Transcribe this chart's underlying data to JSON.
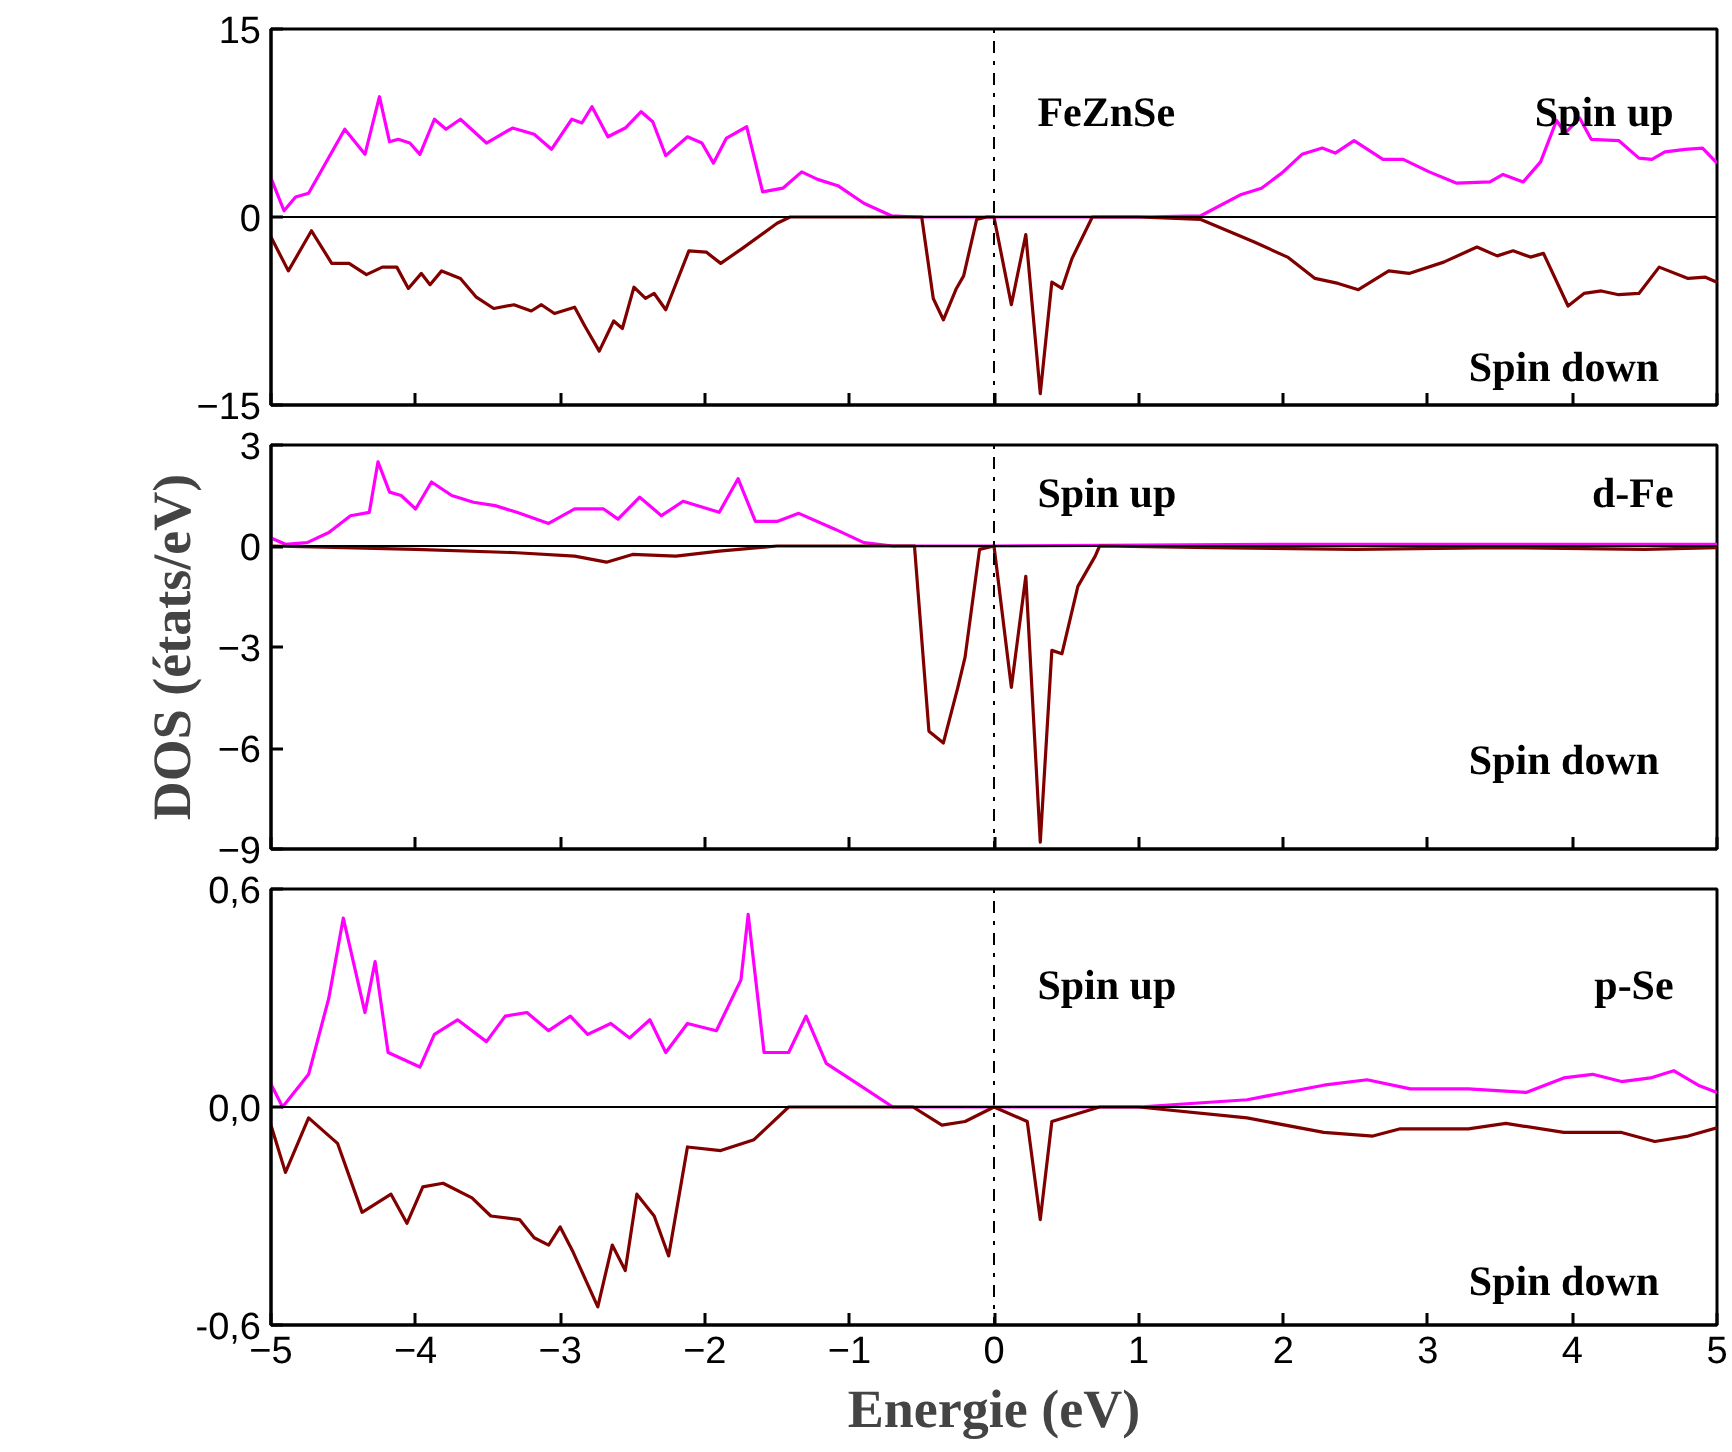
{
  "chart_data": [
    {
      "type": "line",
      "xlim": [
        -5,
        5
      ],
      "xticks": [
        -5,
        -4,
        -3,
        -2,
        -1,
        0,
        1,
        2,
        3,
        4,
        5
      ],
      "ylim": [
        -15,
        15
      ],
      "yticks": [
        -15,
        0,
        15
      ],
      "tick_labels": "y",
      "annotations": [
        "FeZnSe",
        "Spin up",
        "Spin down"
      ],
      "ref_lines": [
        {
          "axis": "x",
          "value": 0,
          "color": "#000000",
          "line_style": "dashdot"
        },
        {
          "axis": "y",
          "value": 0,
          "color": "#000000",
          "line_style": "solid"
        }
      ],
      "series": [
        {
          "color": "#ff00ff",
          "x": [
            -5.0,
            -4.91,
            -4.83,
            -4.74,
            -4.49,
            -4.35,
            -4.25,
            -4.18,
            -4.12,
            -4.04,
            -3.97,
            -3.87,
            -3.79,
            -3.69,
            -3.51,
            -3.33,
            -3.18,
            -3.06,
            -2.92,
            -2.85,
            -2.78,
            -2.67,
            -2.55,
            -2.44,
            -2.36,
            -2.27,
            -2.12,
            -2.02,
            -1.94,
            -1.85,
            -1.71,
            -1.6,
            -1.46,
            -1.33,
            -1.22,
            -1.08,
            -0.9,
            -0.71,
            -0.53,
            0,
            1.0,
            1.43,
            1.71,
            1.85,
            1.99,
            2.13,
            2.27,
            2.36,
            2.49,
            2.69,
            2.83,
            3.01,
            3.2,
            3.43,
            3.52,
            3.66,
            3.78,
            3.89,
            3.95,
            4.05,
            4.13,
            4.32,
            4.46,
            4.55,
            4.64,
            4.78,
            4.9,
            5.0
          ],
          "values": [
            3.1,
            0.5,
            1.6,
            1.9,
            7.0,
            5.0,
            9.6,
            6.0,
            6.2,
            5.9,
            5.0,
            7.8,
            7.0,
            7.8,
            5.9,
            7.1,
            6.6,
            5.4,
            7.8,
            7.5,
            8.8,
            6.4,
            7.1,
            8.4,
            7.6,
            4.9,
            6.4,
            5.9,
            4.3,
            6.3,
            7.2,
            2.0,
            2.3,
            3.6,
            3.0,
            2.5,
            1.1,
            0.1,
            0,
            0,
            0,
            0.1,
            1.8,
            2.3,
            3.5,
            5.0,
            5.5,
            5.1,
            6.1,
            4.6,
            4.6,
            3.6,
            2.7,
            2.8,
            3.4,
            2.8,
            4.4,
            7.7,
            6.7,
            7.9,
            6.2,
            6.1,
            4.7,
            4.6,
            5.2,
            5.4,
            5.5,
            4.3
          ]
        },
        {
          "color": "#800000",
          "x": [
            -5.0,
            -4.88,
            -4.72,
            -4.58,
            -4.46,
            -4.34,
            -4.23,
            -4.13,
            -4.05,
            -3.96,
            -3.9,
            -3.82,
            -3.69,
            -3.58,
            -3.46,
            -3.32,
            -3.2,
            -3.13,
            -3.04,
            -2.9,
            -2.83,
            -2.73,
            -2.63,
            -2.57,
            -2.49,
            -2.41,
            -2.35,
            -2.27,
            -2.11,
            -1.99,
            -1.89,
            -1.74,
            -1.5,
            -1.41,
            -0.5,
            -0.42,
            -0.35,
            -0.26,
            -0.21,
            -0.12,
            -0.05,
            0,
            0.12,
            0.22,
            0.32,
            0.4,
            0.47,
            0.54,
            0.68,
            1.0,
            1.43,
            1.8,
            2.03,
            2.22,
            2.38,
            2.52,
            2.73,
            2.87,
            3.11,
            3.34,
            3.48,
            3.59,
            3.71,
            3.8,
            3.97,
            4.08,
            4.2,
            4.32,
            4.46,
            4.6,
            4.8,
            4.92,
            5.0
          ],
          "values": [
            -1.6,
            -4.3,
            -1.1,
            -3.7,
            -3.7,
            -4.6,
            -4.0,
            -4.0,
            -5.7,
            -4.5,
            -5.4,
            -4.3,
            -4.9,
            -6.4,
            -7.3,
            -7.0,
            -7.5,
            -7.0,
            -7.7,
            -7.2,
            -8.7,
            -10.7,
            -8.3,
            -8.9,
            -5.6,
            -6.5,
            -6.1,
            -7.4,
            -2.7,
            -2.8,
            -3.7,
            -2.5,
            -0.5,
            0,
            0,
            -6.5,
            -8.2,
            -5.7,
            -4.7,
            -0.2,
            0,
            0,
            -7.0,
            -1.4,
            -14.1,
            -5.2,
            -5.7,
            -3.3,
            0,
            0,
            -0.2,
            -2.0,
            -3.2,
            -4.9,
            -5.3,
            -5.8,
            -4.3,
            -4.5,
            -3.6,
            -2.4,
            -3.1,
            -2.7,
            -3.2,
            -2.9,
            -7.1,
            -6.1,
            -5.9,
            -6.2,
            -6.1,
            -4.0,
            -4.9,
            -4.8,
            -5.2
          ]
        }
      ]
    },
    {
      "type": "line",
      "xlim": [
        -5,
        5
      ],
      "xticks": [
        -5,
        -4,
        -3,
        -2,
        -1,
        0,
        1,
        2,
        3,
        4,
        5
      ],
      "ylim": [
        -9,
        3
      ],
      "yticks": [
        -9,
        -6,
        -3,
        0,
        3
      ],
      "tick_labels": "y",
      "ylabel": "DOS (états/eV)",
      "annotations": [
        "Spin up",
        "d-Fe",
        "Spin down"
      ],
      "ref_lines": [
        {
          "axis": "x",
          "value": 0,
          "color": "#000000",
          "line_style": "dashdot"
        },
        {
          "axis": "y",
          "value": 0,
          "color": "#000000",
          "line_style": "solid"
        }
      ],
      "series": [
        {
          "color": "#ff00ff",
          "x": [
            -5.0,
            -4.9,
            -4.75,
            -4.6,
            -4.45,
            -4.32,
            -4.26,
            -4.18,
            -4.1,
            -4.0,
            -3.89,
            -3.75,
            -3.6,
            -3.45,
            -3.3,
            -3.08,
            -2.9,
            -2.7,
            -2.6,
            -2.45,
            -2.3,
            -2.15,
            -1.9,
            -1.77,
            -1.65,
            -1.5,
            -1.35,
            -1.1,
            -0.9,
            -0.7,
            0,
            2.0,
            3.5,
            5.0
          ],
          "values": [
            0.24,
            0.05,
            0.1,
            0.4,
            0.9,
            1.0,
            2.5,
            1.6,
            1.5,
            1.1,
            1.9,
            1.5,
            1.3,
            1.2,
            1.0,
            0.67,
            1.1,
            1.1,
            0.8,
            1.45,
            0.9,
            1.33,
            1.0,
            2.0,
            0.73,
            0.73,
            0.97,
            0.5,
            0.1,
            0,
            0,
            0.05,
            0.05,
            0.05
          ]
        },
        {
          "color": "#800000",
          "x": [
            -5.0,
            -4.0,
            -3.3,
            -2.9,
            -2.68,
            -2.5,
            -2.2,
            -1.9,
            -1.5,
            -0.55,
            -0.45,
            -0.35,
            -0.25,
            -0.2,
            -0.1,
            0,
            0.12,
            0.22,
            0.32,
            0.4,
            0.47,
            0.58,
            0.7,
            0.73,
            1.5,
            2.5,
            3.5,
            4.5,
            5.0
          ],
          "values": [
            0,
            -0.1,
            -0.2,
            -0.3,
            -0.48,
            -0.25,
            -0.3,
            -0.15,
            0,
            0,
            -5.5,
            -5.85,
            -4.2,
            -3.3,
            -0.1,
            0,
            -4.2,
            -0.9,
            -8.8,
            -3.1,
            -3.2,
            -1.2,
            -0.3,
            0,
            -0.05,
            -0.1,
            -0.05,
            -0.1,
            -0.05
          ]
        }
      ]
    },
    {
      "type": "line",
      "xlim": [
        -5,
        5
      ],
      "xticks": [
        -5,
        -4,
        -3,
        -2,
        -1,
        0,
        1,
        2,
        3,
        4,
        5
      ],
      "ylim": [
        -0.6,
        0.6
      ],
      "yticks": [
        {
          "value": -0.6,
          "label": "-0,6"
        },
        {
          "value": 0,
          "label": "0,0"
        },
        {
          "value": 0.6,
          "label": "0,6"
        }
      ],
      "xlabel": "Energie (eV)",
      "annotations": [
        "Spin up",
        "p-Se",
        "Spin down"
      ],
      "ref_lines": [
        {
          "axis": "x",
          "value": 0,
          "color": "#000000",
          "line_style": "dashdot"
        },
        {
          "axis": "y",
          "value": 0,
          "color": "#000000",
          "line_style": "solid"
        }
      ],
      "series": [
        {
          "color": "#ff00ff",
          "x": [
            -5.0,
            -4.92,
            -4.74,
            -4.6,
            -4.5,
            -4.35,
            -4.28,
            -4.19,
            -3.97,
            -3.87,
            -3.71,
            -3.51,
            -3.38,
            -3.23,
            -3.08,
            -2.93,
            -2.81,
            -2.65,
            -2.52,
            -2.38,
            -2.27,
            -2.12,
            -1.92,
            -1.75,
            -1.7,
            -1.59,
            -1.42,
            -1.3,
            -1.16,
            -0.89,
            -0.7,
            0,
            1.0,
            1.75,
            2.28,
            2.58,
            2.88,
            3.28,
            3.68,
            3.94,
            4.14,
            4.34,
            4.54,
            4.7,
            4.87,
            5.0
          ],
          "values": [
            0.063,
            0,
            0.09,
            0.3,
            0.52,
            0.26,
            0.4,
            0.15,
            0.11,
            0.2,
            0.24,
            0.18,
            0.25,
            0.26,
            0.21,
            0.25,
            0.2,
            0.23,
            0.19,
            0.24,
            0.15,
            0.23,
            0.21,
            0.35,
            0.53,
            0.15,
            0.15,
            0.25,
            0.12,
            0.05,
            0,
            0,
            0,
            0.02,
            0.06,
            0.075,
            0.05,
            0.05,
            0.04,
            0.08,
            0.09,
            0.07,
            0.08,
            0.1,
            0.06,
            0.04
          ]
        },
        {
          "color": "#800000",
          "x": [
            -5.0,
            -4.9,
            -4.74,
            -4.54,
            -4.37,
            -4.17,
            -4.06,
            -3.95,
            -3.81,
            -3.61,
            -3.48,
            -3.28,
            -3.18,
            -3.08,
            -3.0,
            -2.91,
            -2.74,
            -2.64,
            -2.55,
            -2.47,
            -2.35,
            -2.25,
            -2.12,
            -1.89,
            -1.66,
            -1.42,
            -0.56,
            -0.36,
            -0.2,
            0,
            0.23,
            0.32,
            0.4,
            0.73,
            1.0,
            1.75,
            2.28,
            2.62,
            2.81,
            3.28,
            3.54,
            3.94,
            4.34,
            4.57,
            4.8,
            5.0
          ],
          "values": [
            -0.05,
            -0.18,
            -0.03,
            -0.1,
            -0.29,
            -0.24,
            -0.32,
            -0.22,
            -0.21,
            -0.25,
            -0.3,
            -0.31,
            -0.36,
            -0.38,
            -0.33,
            -0.4,
            -0.55,
            -0.38,
            -0.45,
            -0.24,
            -0.3,
            -0.41,
            -0.11,
            -0.12,
            -0.09,
            0,
            0,
            -0.05,
            -0.04,
            0,
            -0.04,
            -0.31,
            -0.04,
            0,
            0,
            -0.03,
            -0.07,
            -0.08,
            -0.06,
            -0.06,
            -0.045,
            -0.07,
            -0.07,
            -0.095,
            -0.08,
            -0.057
          ]
        }
      ]
    }
  ]
}
